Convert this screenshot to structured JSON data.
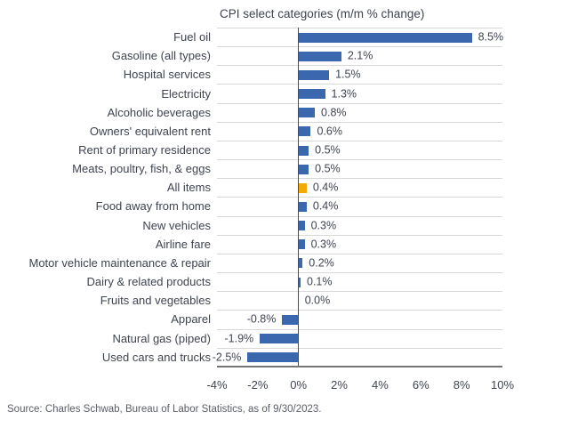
{
  "title": "CPI select categories (m/m % change)",
  "source": "Source: Charles Schwab, Bureau of Labor Statistics, as of 9/30/2023.",
  "colors": {
    "bar": "#3a67ad",
    "highlight": "#f2a900",
    "gridline": "#d8d8d8",
    "zero_line": "#4d4d4d",
    "axis_line": "#757575",
    "text": "#3e4450",
    "source_text": "#5a5e66"
  },
  "chart_data": {
    "type": "bar",
    "orientation": "horizontal",
    "title": "CPI select categories (m/m % change)",
    "xlabel": "",
    "ylabel": "",
    "categories": [
      "Fuel oil",
      "Gasoline (all types)",
      "Hospital services",
      "Electricity",
      "Alcoholic beverages",
      "Owners' equivalent rent",
      "Rent of primary residence",
      "Meats, poultry, fish, & eggs",
      "All items",
      "Food away from home",
      "New vehicles",
      "Airline fare",
      "Motor vehicle maintenance & repair",
      "Dairy & related products",
      "Fruits and vegetables",
      "Apparel",
      "Natural gas (piped)",
      "Used cars and trucks"
    ],
    "values": [
      8.5,
      2.1,
      1.5,
      1.3,
      0.8,
      0.6,
      0.5,
      0.5,
      0.4,
      0.4,
      0.3,
      0.3,
      0.2,
      0.1,
      0.0,
      -0.8,
      -1.9,
      -2.5
    ],
    "value_labels": [
      "8.5%",
      "2.1%",
      "1.5%",
      "1.3%",
      "0.8%",
      "0.6%",
      "0.5%",
      "0.5%",
      "0.4%",
      "0.4%",
      "0.3%",
      "0.3%",
      "0.2%",
      "0.1%",
      "0.0%",
      "-0.8%",
      "-1.9%",
      "-2.5%"
    ],
    "highlighted_category": "All items",
    "highlight_index": 8,
    "xlim": [
      -4,
      10
    ],
    "x_ticks": [
      "-4%",
      "-2%",
      "0%",
      "2%",
      "4%",
      "6%",
      "8%",
      "10%"
    ],
    "x_tick_values": [
      -4,
      -2,
      0,
      2,
      4,
      6,
      8,
      10
    ],
    "grid": "horizontal-row-gridlines",
    "legend": "none"
  }
}
